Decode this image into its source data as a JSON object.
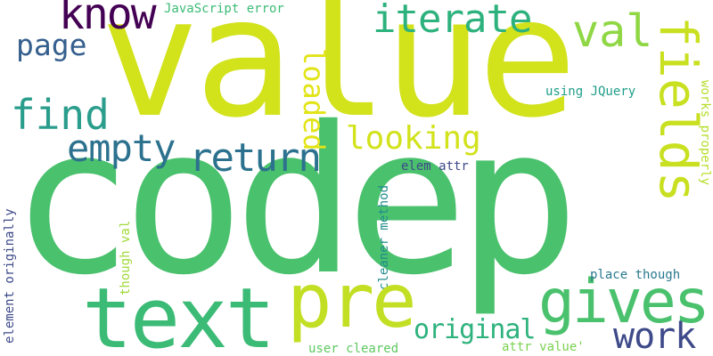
{
  "words": [
    {
      "text": "value",
      "color": "#d2e21b"
    },
    {
      "text": "codep",
      "color": "#4ac16d"
    },
    {
      "text": "know",
      "color": "#440154"
    },
    {
      "text": "iterate",
      "color": "#2db27d"
    },
    {
      "text": "val",
      "color": "#8fd744"
    },
    {
      "text": "JavaScript error",
      "color": "#3bbb75"
    },
    {
      "text": "page",
      "color": "#355f8d"
    },
    {
      "text": "find",
      "color": "#2a9d8c"
    },
    {
      "text": "empty",
      "color": "#2c728e"
    },
    {
      "text": "return",
      "color": "#2c728e"
    },
    {
      "text": "loaded",
      "color": "#e2e418"
    },
    {
      "text": "looking",
      "color": "#d2e21b"
    },
    {
      "text": "fields",
      "color": "#c8e020"
    },
    {
      "text": "using JQuery",
      "color": "#1f9e89"
    },
    {
      "text": "works properly",
      "color": "#b5de2b"
    },
    {
      "text": "elem attr",
      "color": "#3e4a89"
    },
    {
      "text": "element originally",
      "color": "#3e4a89"
    },
    {
      "text": "though val",
      "color": "#a0da39"
    },
    {
      "text": "cleaner method",
      "color": "#228c8d"
    },
    {
      "text": "text",
      "color": "#3bbb75"
    },
    {
      "text": "pre",
      "color": "#c2df23"
    },
    {
      "text": "gives",
      "color": "#4ac16d"
    },
    {
      "text": "original",
      "color": "#2db27d"
    },
    {
      "text": "work",
      "color": "#3e4a89"
    },
    {
      "text": "place though",
      "color": "#2a788e"
    },
    {
      "text": "user cleared",
      "color": "#5ec962"
    },
    {
      "text": "attr value'",
      "color": "#7ad151"
    }
  ]
}
